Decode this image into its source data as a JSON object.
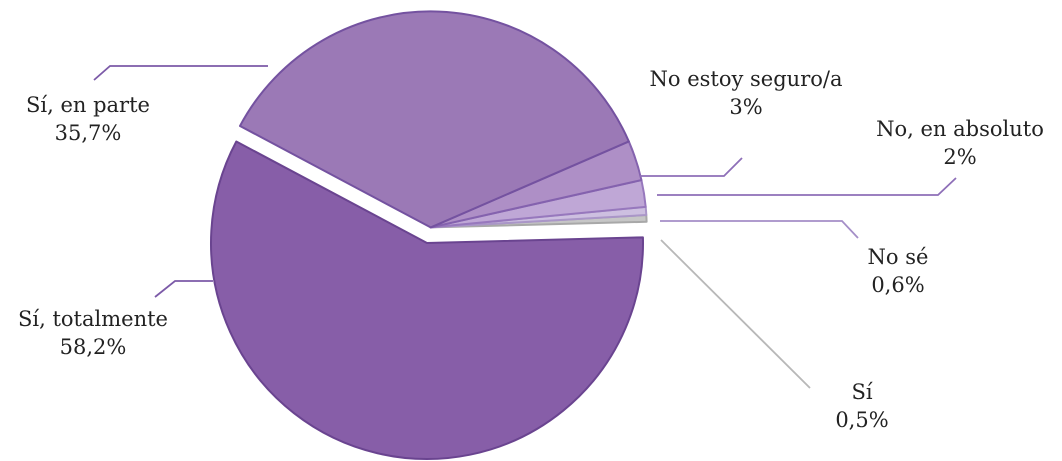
{
  "chart_data": {
    "type": "pie",
    "title": "",
    "slices": [
      {
        "label": "Sí, totalmente",
        "value": 58.2,
        "display": "58,2%",
        "color": "#875ea8",
        "stroke": "#6a4490",
        "exploded": false
      },
      {
        "label": "Sí, en parte",
        "value": 35.7,
        "display": "35,7%",
        "color": "#9b79b6",
        "stroke": "#7452a0",
        "exploded": true
      },
      {
        "label": "No estoy seguro/a",
        "value": 3,
        "display": "3%",
        "color": "#ae8fc6",
        "stroke": "#8462ae",
        "exploded": true
      },
      {
        "label": "No, en absoluto",
        "value": 2,
        "display": "2%",
        "color": "#bfa7d6",
        "stroke": "#9778bd",
        "exploded": true
      },
      {
        "label": "No sé",
        "value": 0.6,
        "display": "0,6%",
        "color": "#cdbfe0",
        "stroke": "#aa96c8",
        "exploded": true
      },
      {
        "label": "Sí",
        "value": 0.5,
        "display": "0,5%",
        "color": "#c6c6c6",
        "stroke": "#a8a8a8",
        "exploded": true
      }
    ],
    "legend": "none"
  }
}
